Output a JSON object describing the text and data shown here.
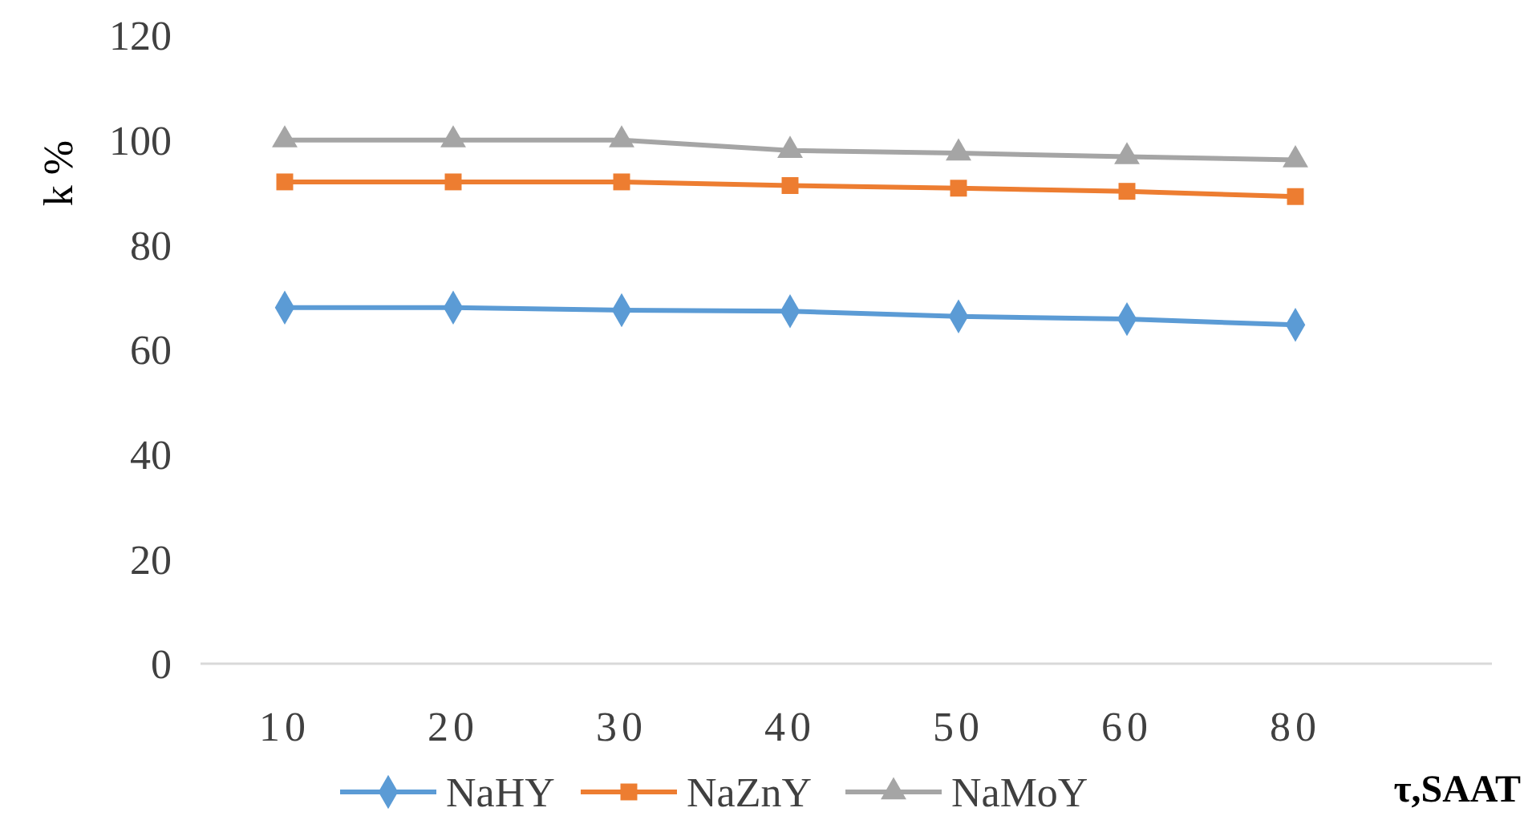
{
  "chart_data": {
    "type": "line",
    "xlabel": "τ,SAAT",
    "ylabel": "k %",
    "categories": [
      "10",
      "20",
      "30",
      "40",
      "50",
      "60",
      "80"
    ],
    "series": [
      {
        "name": "NaHY",
        "color": "#5b9bd5",
        "marker": "diamond",
        "values": [
          68,
          68,
          67.5,
          67.3,
          66.3,
          65.8,
          64.7
        ]
      },
      {
        "name": "NaZnY",
        "color": "#ed7d31",
        "marker": "square",
        "values": [
          92,
          92,
          92,
          91.3,
          90.8,
          90.2,
          89.2
        ]
      },
      {
        "name": "NaMoY",
        "color": "#a5a5a5",
        "marker": "triangle",
        "values": [
          100,
          100,
          100,
          98,
          97.5,
          96.8,
          96.2
        ]
      }
    ],
    "ylim": [
      0,
      120
    ],
    "yticks": [
      0,
      20,
      40,
      60,
      80,
      100,
      120
    ],
    "grid": false,
    "legend": "bottom",
    "line_style": "solid"
  }
}
